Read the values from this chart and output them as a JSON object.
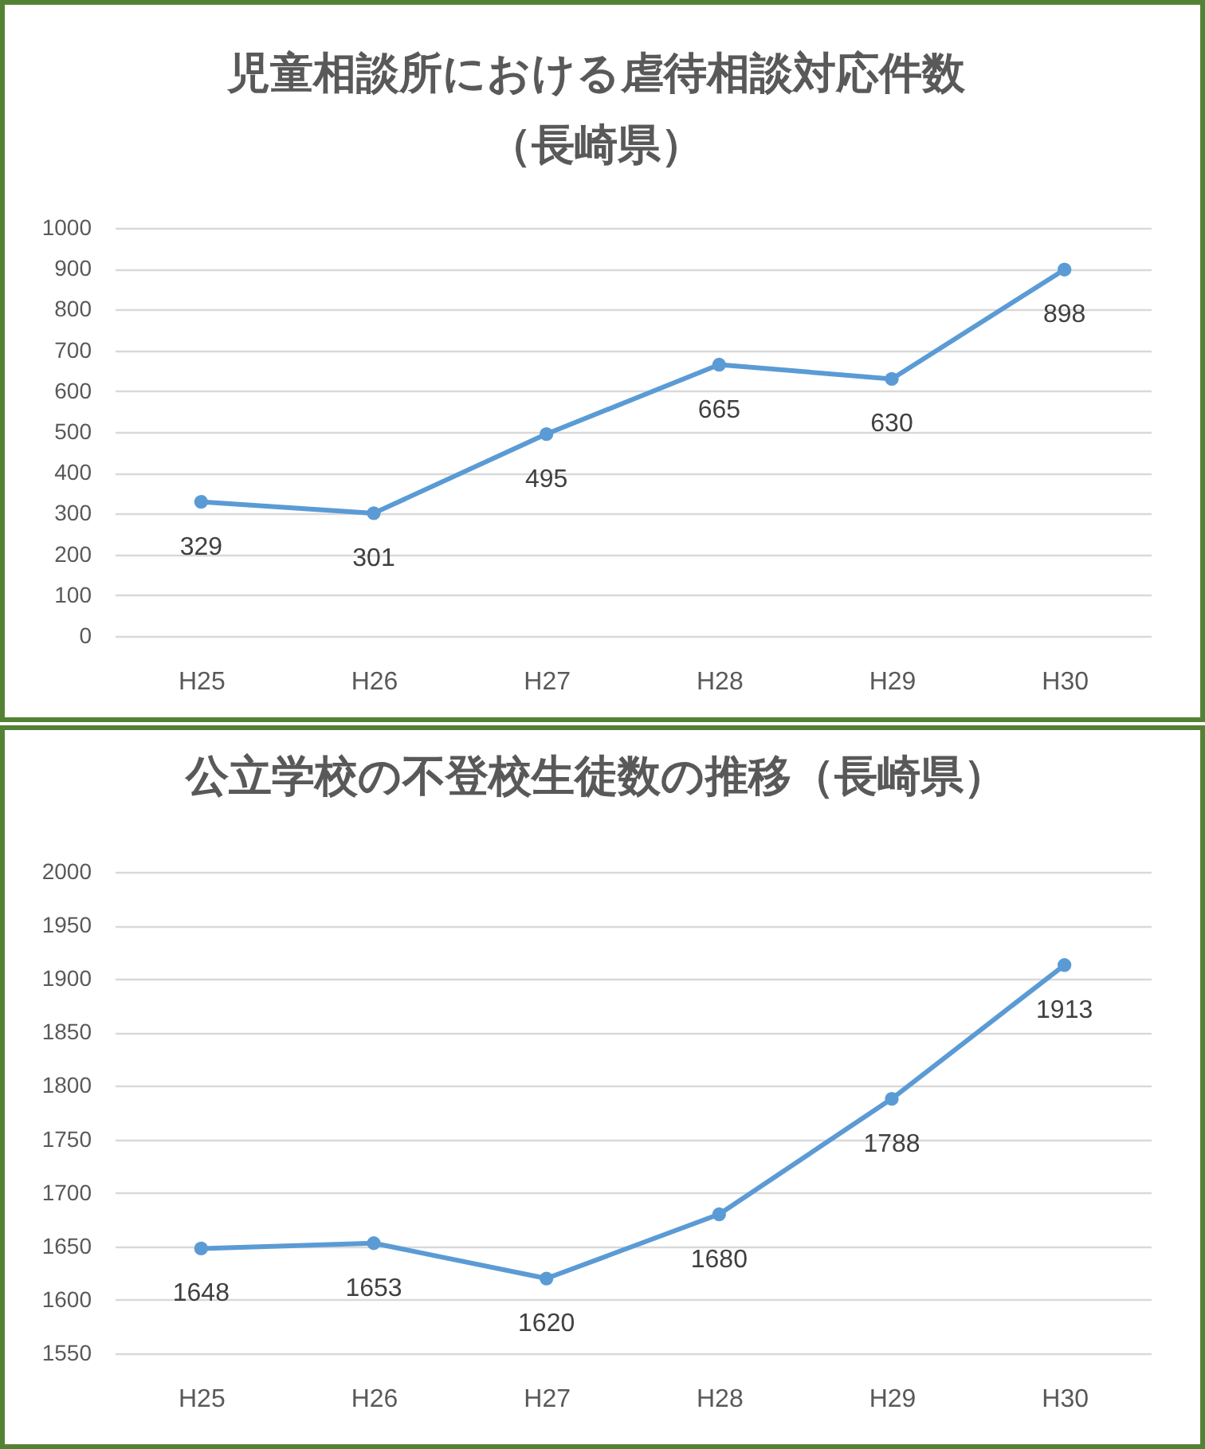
{
  "chart_data": [
    {
      "type": "line",
      "title": "児童相談所における虐待相談対応件数",
      "subtitle": "（長崎県）",
      "categories": [
        "H25",
        "H26",
        "H27",
        "H28",
        "H29",
        "H30"
      ],
      "series": [
        {
          "color": "#5b9bd5",
          "values": [
            329,
            301,
            495,
            665,
            630,
            898
          ]
        }
      ],
      "ylim": [
        0,
        1000
      ],
      "yticks": [
        0,
        100,
        200,
        300,
        400,
        500,
        600,
        700,
        800,
        900,
        1000
      ],
      "grid": "y",
      "marker": "circle",
      "data_labels": true
    },
    {
      "type": "line",
      "title": "公立学校の不登校生徒数の推移（長崎県）",
      "categories": [
        "H25",
        "H26",
        "H27",
        "H28",
        "H29",
        "H30"
      ],
      "series": [
        {
          "color": "#5b9bd5",
          "values": [
            1648,
            1653,
            1620,
            1680,
            1788,
            1913
          ]
        }
      ],
      "ylim": [
        1550,
        2000
      ],
      "yticks": [
        1550,
        1600,
        1650,
        1700,
        1750,
        1800,
        1850,
        1900,
        1950,
        2000
      ],
      "grid": "y",
      "marker": "circle",
      "data_labels": true
    }
  ]
}
